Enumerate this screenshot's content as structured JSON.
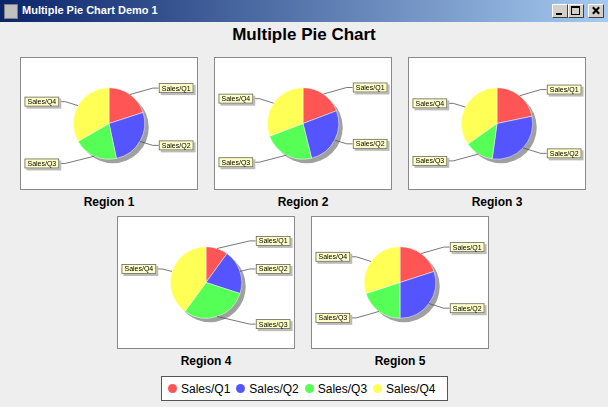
{
  "window_title": "Multiple Pie Chart Demo 1",
  "title": "Multiple Pie Chart",
  "legend": "bottom",
  "chart_data": [
    {
      "type": "pie",
      "title": "Region 1",
      "categories": [
        "Sales/Q1",
        "Sales/Q2",
        "Sales/Q3",
        "Sales/Q4"
      ],
      "values": [
        3,
        4,
        3,
        5
      ],
      "colors": [
        "#ff5555",
        "#5555ff",
        "#55ff55",
        "#ffff55"
      ]
    },
    {
      "type": "pie",
      "title": "Region 2",
      "categories": [
        "Sales/Q1",
        "Sales/Q2",
        "Sales/Q3",
        "Sales/Q4"
      ],
      "values": [
        5,
        7,
        6,
        8
      ],
      "colors": [
        "#ff5555",
        "#5555ff",
        "#55ff55",
        "#ffff55"
      ]
    },
    {
      "type": "pie",
      "title": "Region 3",
      "categories": [
        "Sales/Q1",
        "Sales/Q2",
        "Sales/Q3",
        "Sales/Q4"
      ],
      "values": [
        5,
        7,
        3,
        8
      ],
      "colors": [
        "#ff5555",
        "#5555ff",
        "#55ff55",
        "#ffff55"
      ]
    },
    {
      "type": "pie",
      "title": "Region 4",
      "categories": [
        "Sales/Q1",
        "Sales/Q2",
        "Sales/Q3",
        "Sales/Q4"
      ],
      "values": [
        1,
        2,
        3,
        4
      ],
      "colors": [
        "#ff5555",
        "#5555ff",
        "#55ff55",
        "#ffff55"
      ]
    },
    {
      "type": "pie",
      "title": "Region 5",
      "categories": [
        "Sales/Q1",
        "Sales/Q2",
        "Sales/Q3",
        "Sales/Q4"
      ],
      "values": [
        2,
        3,
        2,
        3
      ],
      "colors": [
        "#ff5555",
        "#5555ff",
        "#55ff55",
        "#ffff55"
      ]
    }
  ]
}
